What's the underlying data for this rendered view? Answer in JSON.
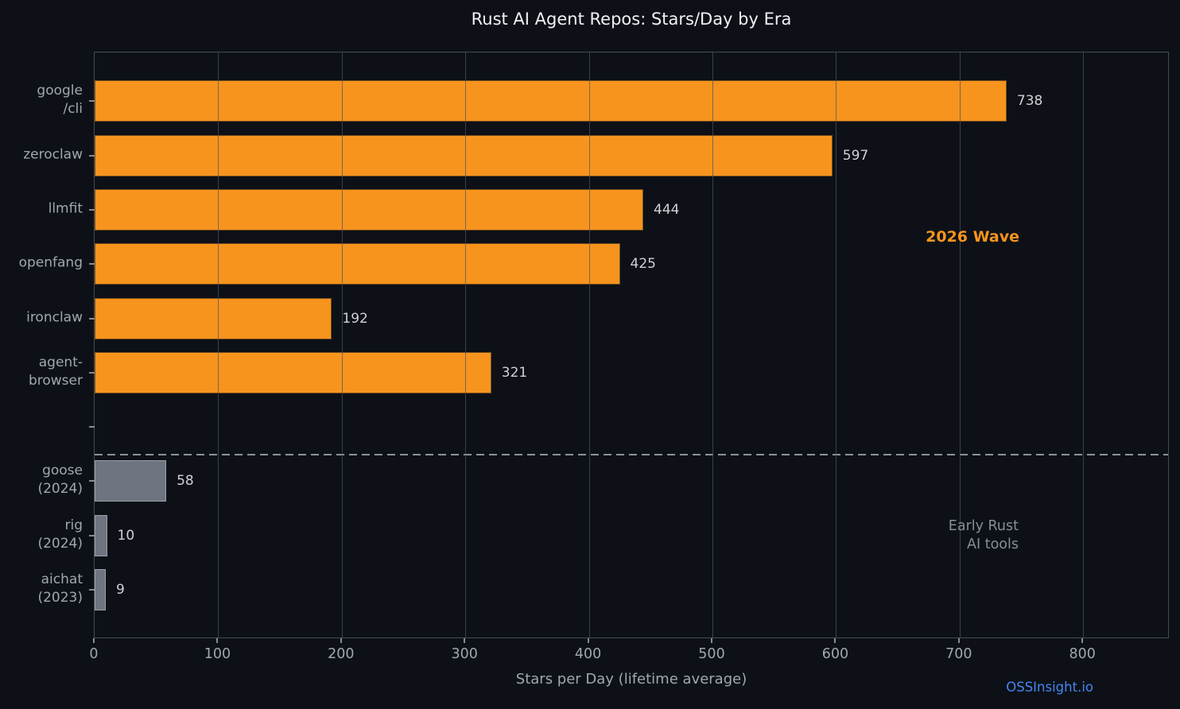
{
  "title": "Rust AI Agent Repos: Stars/Day by Era",
  "watermark": "OSSInsight.io",
  "colors": {
    "background": "#0d1117",
    "bar_2026_wave": "#f7941e",
    "bar_early": "#6e7580",
    "bar_early_edge": "#9aa1ab",
    "axis_spine": "#454b57",
    "tick_label": "#a0a7b1",
    "value_label": "#ced2d6",
    "title_text": "#eef1f4",
    "annotation_early": "#878e99",
    "watermark_link": "#4585f0",
    "separator_dash": "#8a919c"
  },
  "chart_data": {
    "type": "bar",
    "orientation": "horizontal",
    "title": "Rust AI Agent Repos: Stars/Day by Era",
    "xlabel": "Stars per Day (lifetime average)",
    "xlim": [
      0,
      870
    ],
    "xticks": [
      0,
      100,
      200,
      300,
      400,
      500,
      600,
      700,
      800
    ],
    "grid": "vertical",
    "legend": "none",
    "bars": [
      {
        "label_lines": [
          "google",
          "/cli"
        ],
        "value": 738,
        "era": "2026-wave"
      },
      {
        "label_lines": [
          "zeroclaw"
        ],
        "value": 597,
        "era": "2026-wave"
      },
      {
        "label_lines": [
          "llmfit"
        ],
        "value": 444,
        "era": "2026-wave"
      },
      {
        "label_lines": [
          "openfang"
        ],
        "value": 425,
        "era": "2026-wave"
      },
      {
        "label_lines": [
          "ironclaw"
        ],
        "value": 192,
        "era": "2026-wave"
      },
      {
        "label_lines": [
          "agent-",
          "browser"
        ],
        "value": 321,
        "era": "2026-wave"
      },
      {
        "label_lines": [],
        "value": null,
        "era": "spacer"
      },
      {
        "label_lines": [
          "goose",
          "(2024)"
        ],
        "value": 58,
        "era": "early"
      },
      {
        "label_lines": [
          "rig",
          "(2024)"
        ],
        "value": 10,
        "era": "early"
      },
      {
        "label_lines": [
          "aichat",
          "(2023)"
        ],
        "value": 9,
        "era": "early"
      }
    ],
    "annotations": [
      {
        "text": "2026 Wave",
        "color": "#f7941e"
      },
      {
        "lines": [
          "Early Rust",
          "AI tools"
        ],
        "color": "#878e99"
      }
    ],
    "separator": "dashed horizontal line between 2026-wave group and early group"
  }
}
